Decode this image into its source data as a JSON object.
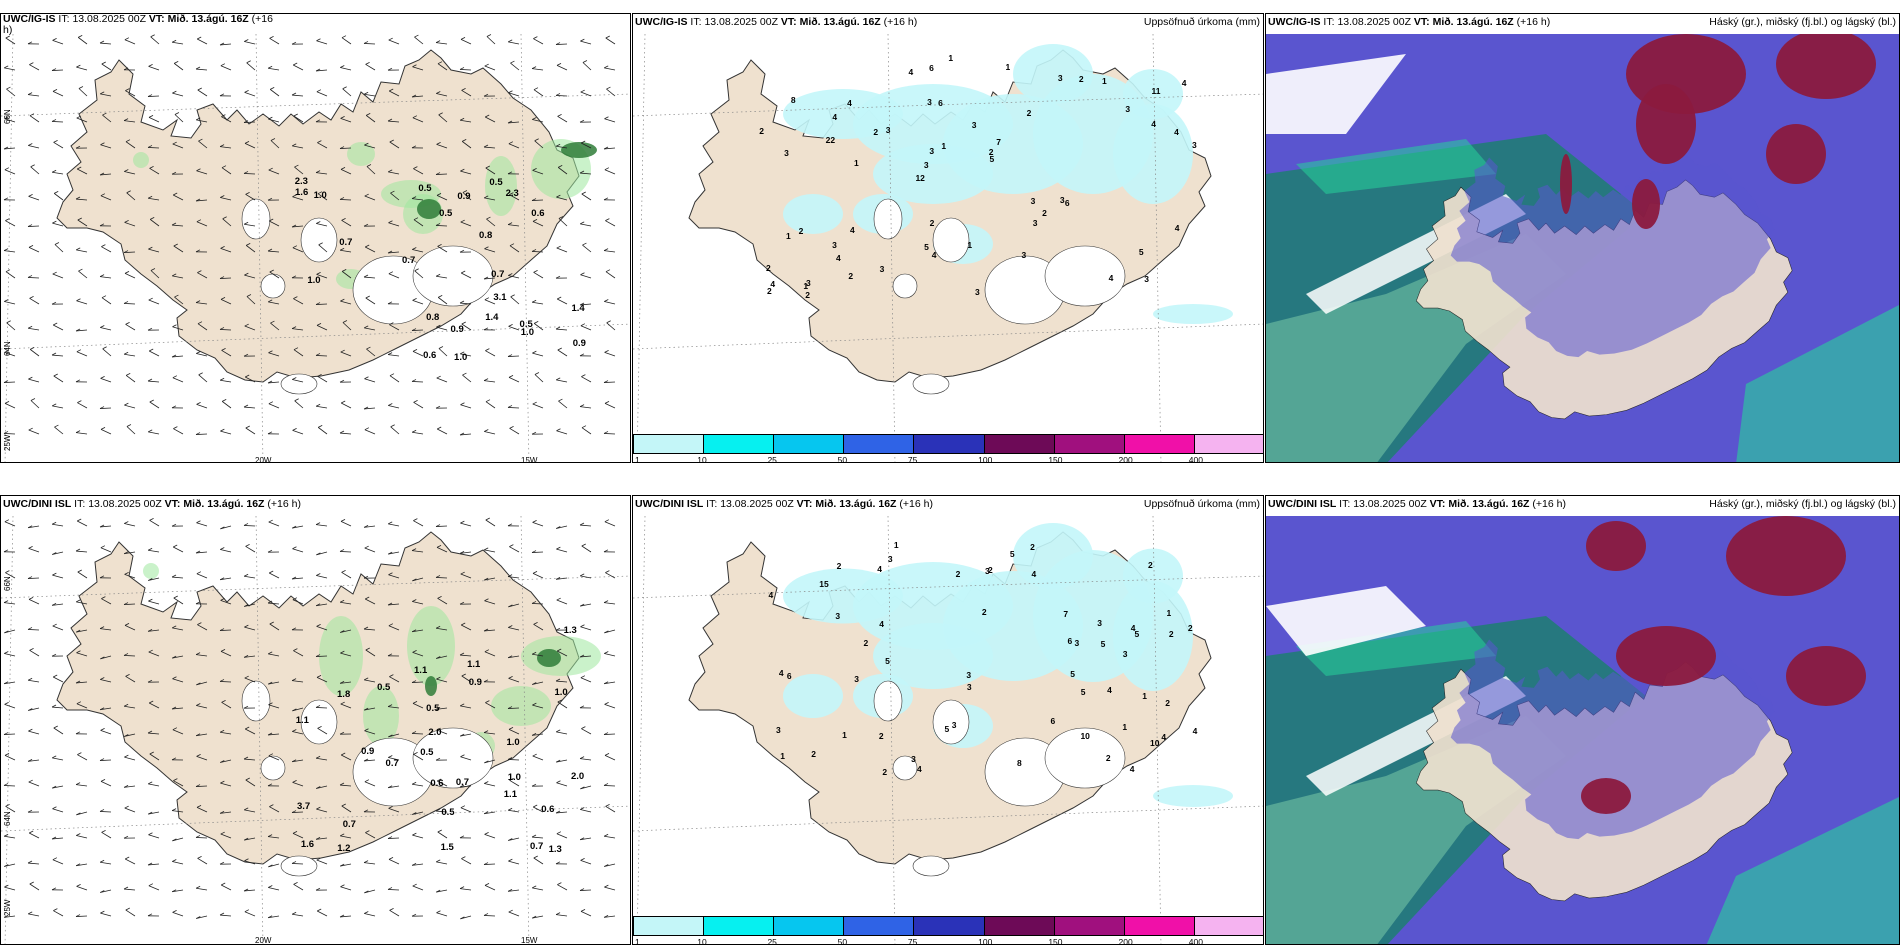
{
  "colors": {
    "land": "#efe1cf",
    "sea": "#ffffff",
    "coast": "#333333",
    "precip_light": "#c3f6f9",
    "wind_green": "#9ee89e",
    "wind_dark": "#2f7c38",
    "cloud_high": "#8b1a3e",
    "cloud_mid": "#5a55cf",
    "cloud_low": "#247a7a",
    "cloud_low2": "#5aaa98",
    "cloud_green": "#26d39a"
  },
  "panels": {
    "top_left": {
      "model": "UWC/IG-IS",
      "it_label": "IT:",
      "it_value": "13.08.2025 00Z",
      "vt_label": "VT:",
      "vt_value": "Mið. 13.ágú. 16Z",
      "lead": "(+16",
      "lead_end": "h)"
    },
    "top_mid": {
      "model": "UWC/IG-IS",
      "it_label": "IT:",
      "it_value": "13.08.2025 00Z",
      "vt_label": "VT:",
      "vt_value": "Mið. 13.ágú. 16Z",
      "lead": "(+16 h)",
      "right_title": "Uppsöfnuð úrkoma (mm)"
    },
    "top_right": {
      "model": "UWC/IG-IS",
      "it_label": "IT:",
      "it_value": "13.08.2025 00Z",
      "vt_label": "VT:",
      "vt_value": "Mið. 13.ágú. 16Z",
      "lead": "(+16 h)",
      "right_title": "Háský (gr.), miðský (fj.bl.) og lágský (bl.)"
    },
    "bot_left": {
      "model": "UWC/DINI ISL",
      "it_label": "IT:",
      "it_value": "13.08.2025 00Z",
      "vt_label": "VT:",
      "vt_value": "Mið. 13.ágú. 16Z",
      "lead": "(+16 h)"
    },
    "bot_mid": {
      "model": "UWC/DINI ISL",
      "it_label": "IT:",
      "it_value": "13.08.2025 00Z",
      "vt_label": "VT:",
      "vt_value": "Mið. 13.ágú. 16Z",
      "lead": "(+16 h)",
      "right_title": "Uppsöfnuð úrkoma (mm)"
    },
    "bot_right": {
      "model": "UWC/DINI ISL",
      "it_label": "IT:",
      "it_value": "13.08.2025 00Z",
      "vt_label": "VT:",
      "vt_value": "Mið. 13.ágú. 16Z",
      "lead": "(+16 h)",
      "right_title": "Háský (gr.), miðský (fj.bl.) og lágský (bl.)"
    }
  },
  "axes": {
    "lat_66": "66N",
    "lat_64": "64N",
    "lon_25": "25W",
    "lon_20": "20W",
    "lon_15": "15W"
  },
  "colorbar": {
    "ticks": [
      "1",
      "10",
      "25",
      "50",
      "75",
      "100",
      "150",
      "200",
      "400"
    ],
    "colors": [
      "#c4f6f8",
      "#06f0f0",
      "#06c6ef",
      "#2f63e6",
      "#2a32b8",
      "#6d0a57",
      "#a0107e",
      "#f010a8",
      "#f5b3f0"
    ]
  },
  "precip_values": {
    "top": [
      "3",
      "3",
      "11",
      "12",
      "2",
      "3",
      "3",
      "3",
      "2",
      "3",
      "2",
      "4",
      "6",
      "7",
      "6",
      "8",
      "6",
      "3",
      "3",
      "4",
      "3",
      "5",
      "3",
      "4",
      "3",
      "4",
      "4",
      "5",
      "3",
      "3",
      "2",
      "22",
      "3",
      "2",
      "4",
      "2",
      "4",
      "4",
      "5",
      "1",
      "3",
      "4",
      "2",
      "3",
      "3",
      "2",
      "2",
      "1",
      "1",
      "1",
      "1",
      "2",
      "4",
      "2",
      "1",
      "1",
      "4",
      "1",
      "4",
      "2",
      "3"
    ],
    "bot": [
      "1",
      "1",
      "4",
      "2",
      "1",
      "3",
      "4",
      "2",
      "2",
      "3",
      "2",
      "4",
      "3",
      "4",
      "3",
      "15",
      "10",
      "4",
      "3",
      "5",
      "4",
      "6",
      "8",
      "6",
      "3",
      "5",
      "5",
      "4",
      "7",
      "4",
      "3",
      "10",
      "2",
      "3",
      "1",
      "2",
      "3",
      "2",
      "4",
      "5",
      "4",
      "5",
      "3",
      "2",
      "2",
      "5",
      "2",
      "2",
      "4",
      "3",
      "1",
      "3",
      "2",
      "2",
      "6",
      "5",
      "1",
      "2"
    ]
  },
  "wind_values": {
    "top": [
      "0.5",
      "1.0",
      "2.3",
      "0.6",
      "0.6",
      "0.5",
      "1.0",
      "0.5",
      "0.7",
      "1.0",
      "0.5",
      "0.9",
      "0.7",
      "1.0",
      "0.9",
      "2.3",
      "1.4",
      "1.4",
      "0.9",
      "3.1",
      "1.6",
      "0.8",
      "0.8",
      "0.7"
    ],
    "bot": [
      "0.5",
      "1.3",
      "1.0",
      "1.5",
      "1.0",
      "0.5",
      "0.7",
      "2.0",
      "0.7",
      "0.9",
      "1.1",
      "1.8",
      "1.1",
      "1.3",
      "0.6",
      "1.1",
      "0.5",
      "0.7",
      "2.0",
      "1.0",
      "0.5",
      "0.9",
      "1.1",
      "1.2",
      "3.7",
      "1.6",
      "0.6",
      "0.7"
    ]
  }
}
